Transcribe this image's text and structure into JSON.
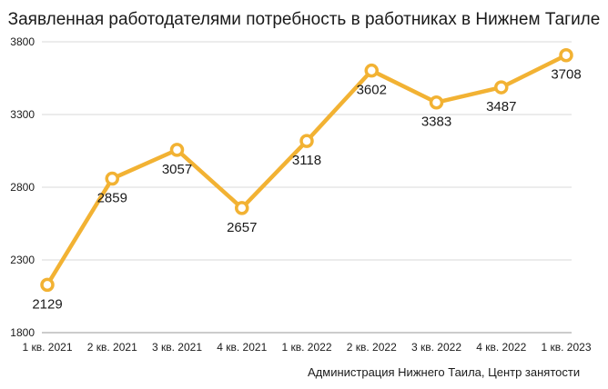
{
  "chart_data": {
    "type": "line",
    "title": "Заявленная работодателями потребность в работниках в Нижнем Тагиле",
    "categories": [
      "1 кв. 2021",
      "2 кв. 2021",
      "3 кв. 2021",
      "4 кв. 2021",
      "1 кв. 2022",
      "2 кв. 2022",
      "3 кв. 2022",
      "4 кв. 2022",
      "1 кв. 2023"
    ],
    "series": [
      {
        "values": [
          2129,
          2859,
          3057,
          2657,
          3118,
          3602,
          3383,
          3487,
          3708
        ]
      }
    ],
    "data_labels": [
      "2129",
      "2859",
      "3057",
      "2657",
      "3118",
      "3602",
      "3383",
      "3487",
      "3708"
    ],
    "ylim": [
      1800,
      3800
    ],
    "yticks": [
      1800,
      2300,
      2800,
      3300,
      3800
    ],
    "ytick_labels": [
      "1800",
      "2300",
      "2800",
      "3300",
      "3800"
    ],
    "grid": true,
    "legend": "none",
    "xlabel": "",
    "ylabel": "",
    "line_color": "#F2B233",
    "source": "Администрация Нижнего Таила, Центр занятости"
  }
}
